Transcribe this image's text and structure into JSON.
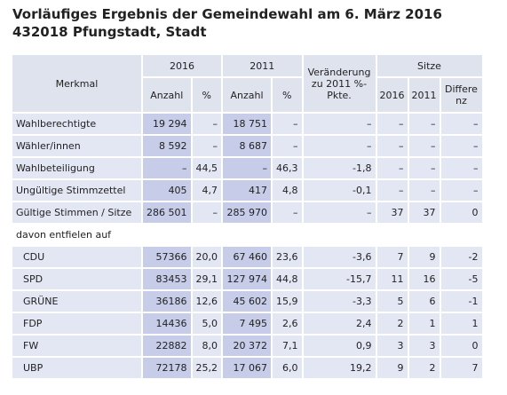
{
  "header": {
    "title": "Vorläufiges Ergebnis der Gemeindewahl am 6. März 2016",
    "subtitle": "432018 Pfungstadt, Stadt"
  },
  "table": {
    "columns": {
      "merkmal": "Merkmal",
      "year_2016": "2016",
      "year_2011": "2011",
      "change": "Veränderung zu 2011 %-Pkte.",
      "seats": "Sitze",
      "anzahl_2016": "Anzahl",
      "pct_2016": "%",
      "anzahl_2011": "Anzahl",
      "pct_2011": "%",
      "seats_2016": "2016",
      "seats_2011": "2011",
      "seats_diff": "Differenz"
    },
    "rows": [
      {
        "label": "Wahlberechtigte",
        "cells": [
          "19 294",
          "–",
          "18 751",
          "–",
          "–",
          "–",
          "–",
          "–"
        ]
      },
      {
        "label": "Wähler/innen",
        "cells": [
          "8 592",
          "–",
          "8 687",
          "–",
          "–",
          "–",
          "–",
          "–"
        ]
      },
      {
        "label": "Wahlbeteiligung",
        "cells": [
          "–",
          "44,5",
          "–",
          "46,3",
          "-1,8",
          "–",
          "–",
          "–"
        ]
      },
      {
        "label": "Ungültige Stimmzettel",
        "cells": [
          "405",
          "4,7",
          "417",
          "4,8",
          "-0,1",
          "–",
          "–",
          "–"
        ]
      },
      {
        "label": "Gültige Stimmen / Sitze",
        "cells": [
          "286 501",
          "–",
          "285 970",
          "–",
          "–",
          "37",
          "37",
          "0"
        ]
      },
      {
        "label": "davon entfielen auf",
        "section": true
      },
      {
        "label": "CDU",
        "indent": true,
        "cells": [
          "57366",
          "20,0",
          "67 460",
          "23,6",
          "-3,6",
          "7",
          "9",
          "-2"
        ]
      },
      {
        "label": "SPD",
        "indent": true,
        "cells": [
          "83453",
          "29,1",
          "127 974",
          "44,8",
          "-15,7",
          "11",
          "16",
          "-5"
        ]
      },
      {
        "label": "GRÜNE",
        "indent": true,
        "cells": [
          "36186",
          "12,6",
          "45 602",
          "15,9",
          "-3,3",
          "5",
          "6",
          "-1"
        ]
      },
      {
        "label": "FDP",
        "indent": true,
        "cells": [
          "14436",
          "5,0",
          "7 495",
          "2,6",
          "2,4",
          "2",
          "1",
          "1"
        ]
      },
      {
        "label": "FW",
        "indent": true,
        "cells": [
          "22882",
          "8,0",
          "20 372",
          "7,1",
          "0,9",
          "3",
          "3",
          "0"
        ]
      },
      {
        "label": "UBP",
        "indent": true,
        "cells": [
          "72178",
          "25,2",
          "17 067",
          "6,0",
          "19,2",
          "9",
          "2",
          "7"
        ]
      }
    ]
  }
}
